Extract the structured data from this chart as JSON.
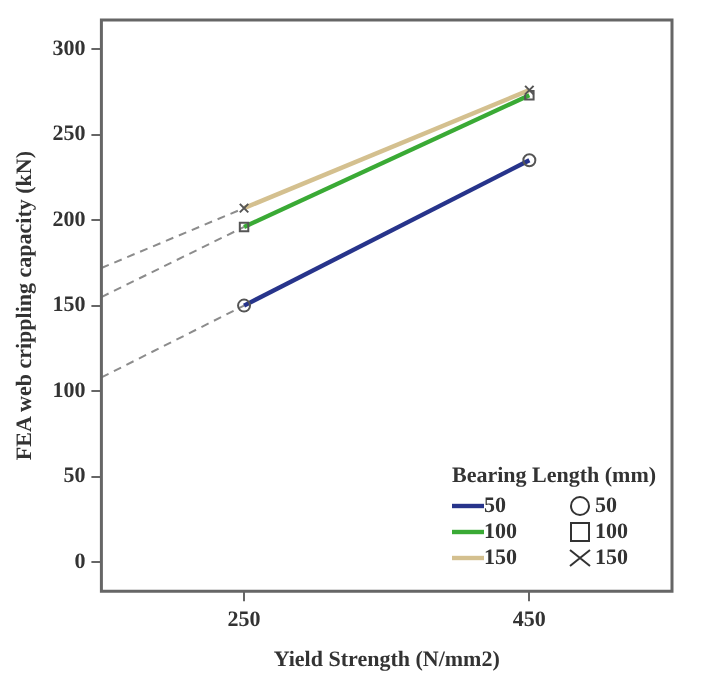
{
  "chart_data": {
    "type": "line",
    "xlabel": "Yield Strength (N/mm2)",
    "ylabel": "FEA web crippling capacity (kN)",
    "legend_title": "Bearing Length (mm)",
    "legend": "bottom right",
    "grid": false,
    "xlim": [
      150,
      550
    ],
    "xticks": [
      250,
      450
    ],
    "ylim": [
      -17,
      317
    ],
    "yticks": [
      0,
      50,
      100,
      150,
      200,
      250,
      300
    ],
    "series": [
      {
        "name": "50",
        "color": "#27348b",
        "x": [
          250,
          450
        ],
        "values": [
          150,
          235
        ],
        "marker": "circle"
      },
      {
        "name": "100",
        "color": "#3aaa35",
        "x": [
          250,
          450
        ],
        "values": [
          196,
          273
        ],
        "marker": "square"
      },
      {
        "name": "150",
        "color": "#d4c08f",
        "x": [
          250,
          450
        ],
        "values": [
          207,
          276
        ],
        "marker": "cross"
      },
      {
        "color": "#8c8c8c",
        "x": [
          150,
          250
        ],
        "values": [
          108,
          150
        ],
        "line_style": "dashed",
        "marker": "none"
      },
      {
        "color": "#8c8c8c",
        "x": [
          150,
          250
        ],
        "values": [
          155,
          196
        ],
        "line_style": "dashed",
        "marker": "none"
      },
      {
        "color": "#8c8c8c",
        "x": [
          150,
          250
        ],
        "values": [
          172,
          207
        ],
        "line_style": "dashed",
        "marker": "none"
      }
    ]
  }
}
